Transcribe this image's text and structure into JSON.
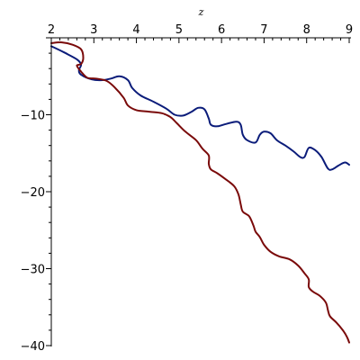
{
  "chart_data": {
    "type": "line",
    "xlabel": "z",
    "ylabel": "",
    "xlim": [
      2,
      9
    ],
    "ylim": [
      -40,
      0
    ],
    "x_ticks": [
      "2",
      "3",
      "4",
      "5",
      "6",
      "7",
      "8",
      "9"
    ],
    "y_ticks": [
      "−10",
      "−20",
      "−30",
      "−40"
    ],
    "x_tick_values": [
      2,
      3,
      4,
      5,
      6,
      7,
      8,
      9
    ],
    "y_tick_values": [
      -10,
      -20,
      -30,
      -40
    ],
    "x_minor_step": 0.2,
    "y_minor_step": 2,
    "grid": false,
    "series": [
      {
        "color": "#0b1c7a",
        "points": [
          [
            2.0,
            -1.1
          ],
          [
            2.3,
            -1.9
          ],
          [
            2.6,
            -2.8
          ],
          [
            2.7,
            -3.5
          ],
          [
            2.65,
            -4.2
          ],
          [
            2.7,
            -4.8
          ],
          [
            2.95,
            -5.4
          ],
          [
            3.2,
            -5.5
          ],
          [
            3.4,
            -5.3
          ],
          [
            3.6,
            -5.0
          ],
          [
            3.8,
            -5.5
          ],
          [
            3.9,
            -6.5
          ],
          [
            4.1,
            -7.5
          ],
          [
            4.4,
            -8.3
          ],
          [
            4.7,
            -9.2
          ],
          [
            4.9,
            -10.0
          ],
          [
            5.1,
            -10.1
          ],
          [
            5.3,
            -9.6
          ],
          [
            5.45,
            -9.1
          ],
          [
            5.6,
            -9.3
          ],
          [
            5.7,
            -10.5
          ],
          [
            5.75,
            -11.3
          ],
          [
            5.9,
            -11.5
          ],
          [
            6.1,
            -11.2
          ],
          [
            6.35,
            -10.9
          ],
          [
            6.45,
            -11.3
          ],
          [
            6.5,
            -12.6
          ],
          [
            6.6,
            -13.3
          ],
          [
            6.8,
            -13.6
          ],
          [
            6.9,
            -12.6
          ],
          [
            7.0,
            -12.2
          ],
          [
            7.15,
            -12.4
          ],
          [
            7.3,
            -13.3
          ],
          [
            7.5,
            -14.0
          ],
          [
            7.7,
            -14.8
          ],
          [
            7.85,
            -15.5
          ],
          [
            7.95,
            -15.5
          ],
          [
            8.05,
            -14.3
          ],
          [
            8.2,
            -14.6
          ],
          [
            8.35,
            -15.5
          ],
          [
            8.5,
            -17.0
          ],
          [
            8.6,
            -17.1
          ],
          [
            8.75,
            -16.6
          ],
          [
            8.9,
            -16.2
          ],
          [
            9.0,
            -16.5
          ]
        ]
      },
      {
        "color": "#7a0a0a",
        "points": [
          [
            2.0,
            -0.7
          ],
          [
            2.25,
            -0.6
          ],
          [
            2.5,
            -0.9
          ],
          [
            2.7,
            -1.5
          ],
          [
            2.75,
            -2.6
          ],
          [
            2.7,
            -3.4
          ],
          [
            2.6,
            -3.6
          ],
          [
            2.7,
            -4.4
          ],
          [
            2.85,
            -5.2
          ],
          [
            3.05,
            -5.3
          ],
          [
            3.3,
            -5.6
          ],
          [
            3.5,
            -6.5
          ],
          [
            3.7,
            -7.8
          ],
          [
            3.8,
            -8.8
          ],
          [
            4.0,
            -9.4
          ],
          [
            4.3,
            -9.6
          ],
          [
            4.6,
            -9.8
          ],
          [
            4.8,
            -10.3
          ],
          [
            4.95,
            -11.1
          ],
          [
            5.15,
            -12.2
          ],
          [
            5.4,
            -13.3
          ],
          [
            5.55,
            -14.4
          ],
          [
            5.7,
            -15.3
          ],
          [
            5.7,
            -16.4
          ],
          [
            5.75,
            -17.1
          ],
          [
            5.9,
            -17.6
          ],
          [
            6.1,
            -18.4
          ],
          [
            6.3,
            -19.3
          ],
          [
            6.4,
            -20.4
          ],
          [
            6.45,
            -21.6
          ],
          [
            6.5,
            -22.6
          ],
          [
            6.65,
            -23.2
          ],
          [
            6.75,
            -24.4
          ],
          [
            6.8,
            -25.2
          ],
          [
            6.9,
            -25.9
          ],
          [
            7.0,
            -26.9
          ],
          [
            7.15,
            -27.8
          ],
          [
            7.35,
            -28.4
          ],
          [
            7.6,
            -28.8
          ],
          [
            7.8,
            -29.6
          ],
          [
            7.95,
            -30.6
          ],
          [
            8.05,
            -31.4
          ],
          [
            8.05,
            -32.4
          ],
          [
            8.15,
            -33.0
          ],
          [
            8.3,
            -33.5
          ],
          [
            8.45,
            -34.4
          ],
          [
            8.5,
            -35.4
          ],
          [
            8.55,
            -36.2
          ],
          [
            8.7,
            -37.0
          ],
          [
            8.85,
            -38.0
          ],
          [
            8.95,
            -38.9
          ],
          [
            9.0,
            -39.6
          ]
        ]
      }
    ]
  }
}
